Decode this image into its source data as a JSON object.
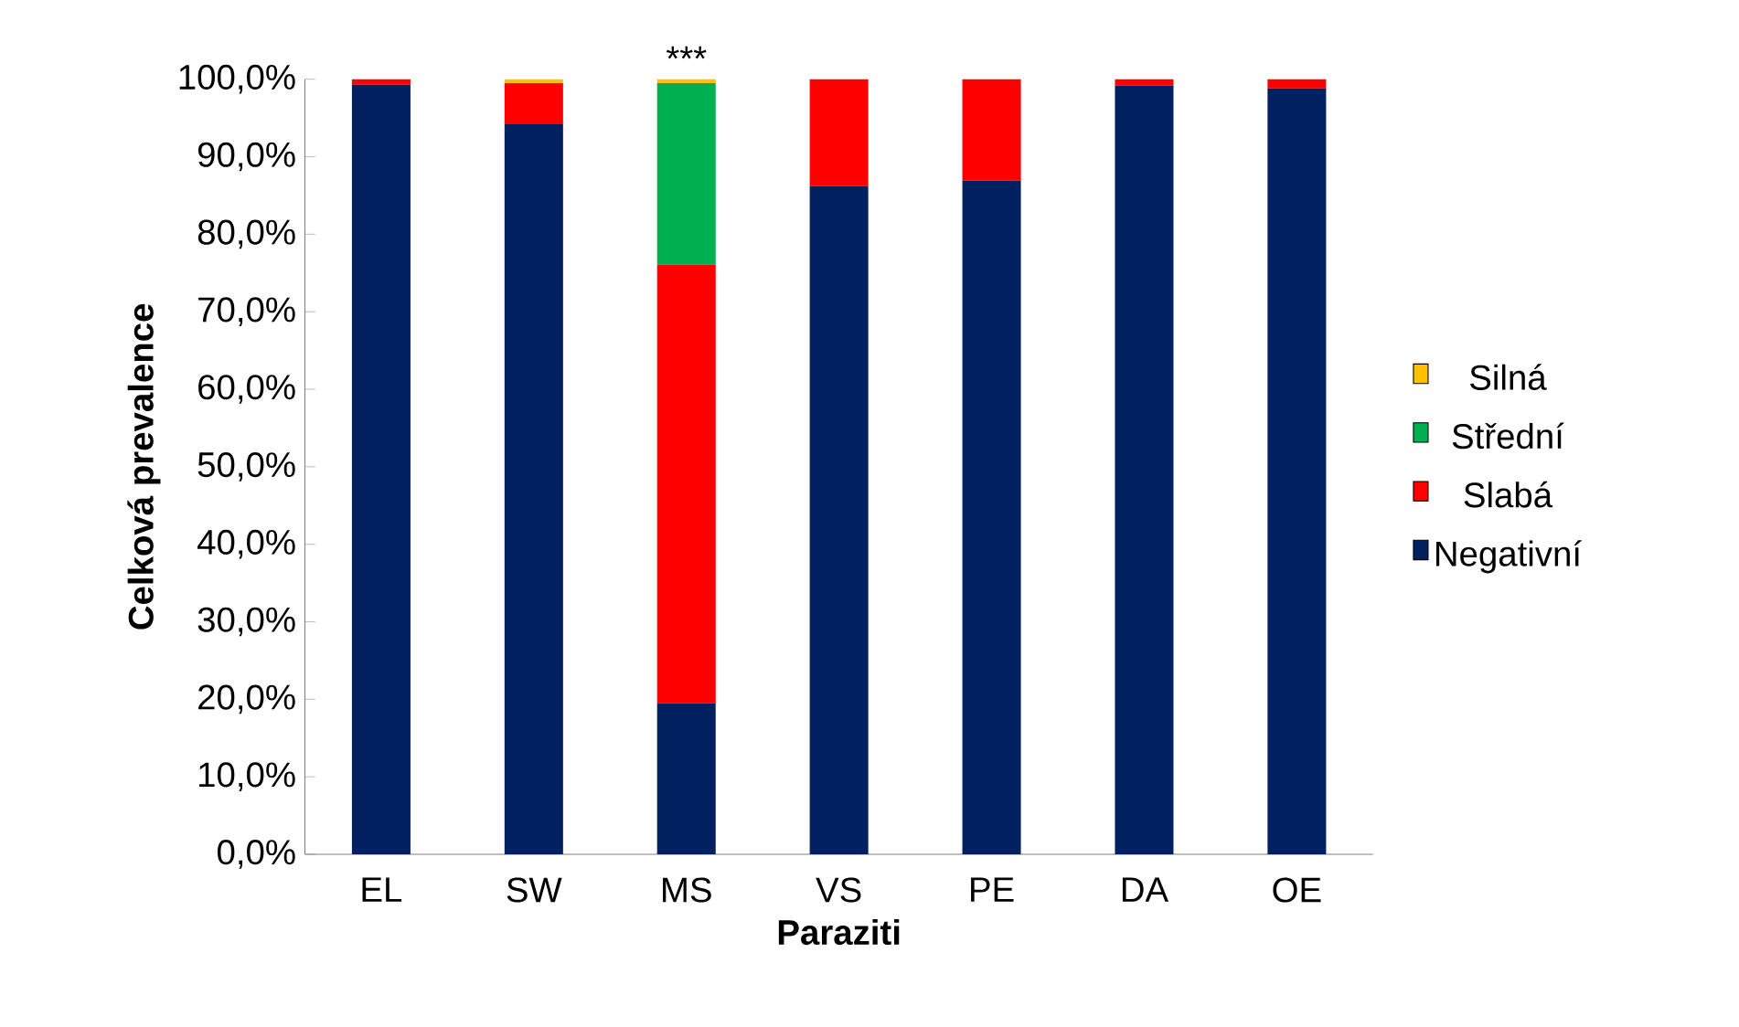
{
  "chart_data": {
    "type": "bar",
    "stacked": true,
    "xlabel": "Paraziti",
    "ylabel": "Celková prevalence",
    "categories": [
      "EL",
      "SW",
      "MS",
      "VS",
      "PE",
      "DA",
      "OE"
    ],
    "series": [
      {
        "name": "Negativní",
        "color": "#002060",
        "values": [
          99.3,
          94.2,
          19.5,
          86.2,
          86.9,
          99.2,
          98.8
        ]
      },
      {
        "name": "Slabá",
        "color": "#ff0000",
        "values": [
          0.7,
          5.3,
          56.6,
          13.8,
          13.1,
          0.8,
          1.2
        ]
      },
      {
        "name": "Střední",
        "color": "#00b050",
        "values": [
          0,
          0,
          23.4,
          0,
          0,
          0,
          0
        ]
      },
      {
        "name": "Silná",
        "color": "#ffc000",
        "values": [
          0,
          0.5,
          0.5,
          0,
          0,
          0,
          0
        ]
      }
    ],
    "ylim": [
      0,
      100
    ],
    "yticks": [
      {
        "value": 0,
        "label": "0,0%"
      },
      {
        "value": 10,
        "label": "10,0%"
      },
      {
        "value": 20,
        "label": "20,0%"
      },
      {
        "value": 30,
        "label": "30,0%"
      },
      {
        "value": 40,
        "label": "40,0%"
      },
      {
        "value": 50,
        "label": "50,0%"
      },
      {
        "value": 60,
        "label": "60,0%"
      },
      {
        "value": 70,
        "label": "70,0%"
      },
      {
        "value": 80,
        "label": "80,0%"
      },
      {
        "value": 90,
        "label": "90,0%"
      },
      {
        "value": 100,
        "label": "100,0%"
      }
    ],
    "legend": "right",
    "annotations": [
      {
        "text": "***",
        "x": "MS",
        "y": 100
      }
    ]
  }
}
